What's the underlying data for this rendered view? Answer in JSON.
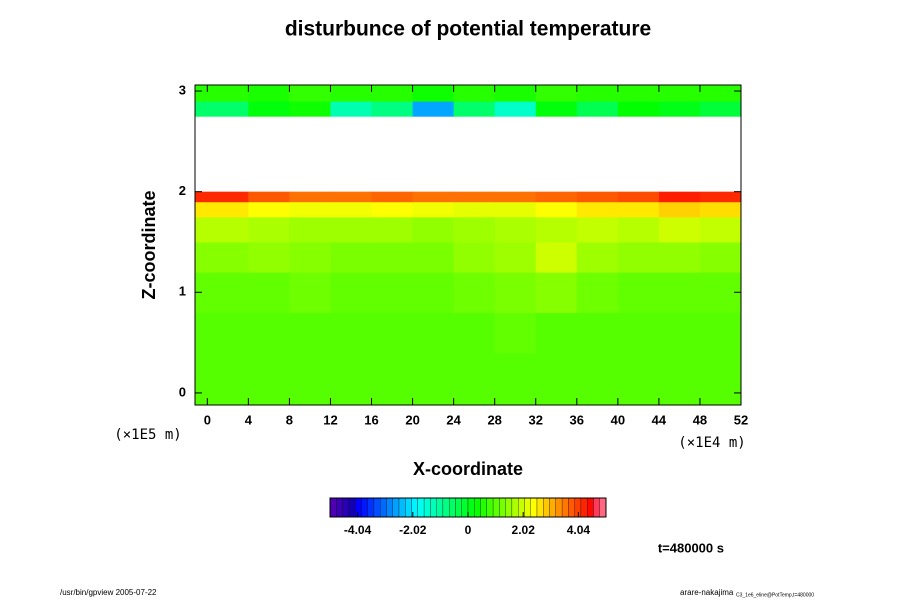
{
  "chart_data": {
    "type": "heatmap",
    "title": "disturbunce of potential temperature",
    "x_label": "X-coordinate",
    "y_label": "Z-coordinate",
    "x_unit": "(×1E4 m)",
    "y_unit": "(×1E5 m)",
    "xlim": [
      -1.2,
      52
    ],
    "ylim": [
      -0.12,
      3.06
    ],
    "xticks": [
      0,
      4,
      8,
      12,
      16,
      20,
      24,
      28,
      32,
      36,
      40,
      44,
      48,
      52
    ],
    "yticks": [
      0,
      1,
      2,
      3
    ],
    "x_bins": [
      -1.2,
      4,
      8,
      12,
      16,
      20,
      24,
      28,
      32,
      36,
      40,
      44,
      48,
      52
    ],
    "y_bins": [
      -0.12,
      0.4,
      0.8,
      1.2,
      1.5,
      1.75,
      1.9,
      2.0,
      2.75,
      2.9,
      3.06
    ],
    "values": [
      [
        1.0,
        1.0,
        1.0,
        1.0,
        1.0,
        1.0,
        1.0,
        1.0,
        1.0,
        1.0,
        1.0,
        1.0,
        1.0
      ],
      [
        1.0,
        1.0,
        1.0,
        1.0,
        1.0,
        1.0,
        1.0,
        1.1,
        1.0,
        1.0,
        1.0,
        1.0,
        1.0
      ],
      [
        1.1,
        1.1,
        1.2,
        1.1,
        1.1,
        1.1,
        1.2,
        1.3,
        1.4,
        1.2,
        1.1,
        1.1,
        1.1
      ],
      [
        1.4,
        1.5,
        1.4,
        1.3,
        1.3,
        1.3,
        1.5,
        1.6,
        2.0,
        1.6,
        1.5,
        1.5,
        1.4
      ],
      [
        1.8,
        1.7,
        1.6,
        1.6,
        1.6,
        1.5,
        1.6,
        1.7,
        1.8,
        1.9,
        1.8,
        2.0,
        1.9
      ],
      [
        2.6,
        2.4,
        2.3,
        2.3,
        2.4,
        2.3,
        2.2,
        2.2,
        2.4,
        2.6,
        2.6,
        2.8,
        2.7
      ],
      [
        4.2,
        3.8,
        3.6,
        3.6,
        3.7,
        3.6,
        3.6,
        3.6,
        3.7,
        3.8,
        3.9,
        4.3,
        4.2
      ],
      [
        null,
        null,
        null,
        null,
        null,
        null,
        null,
        null,
        null,
        null,
        null,
        null,
        null
      ],
      [
        -0.6,
        0.2,
        0.4,
        -1.2,
        -0.8,
        -2.6,
        -0.6,
        -1.4,
        0.2,
        -0.4,
        0.3,
        0.1,
        -0.2
      ],
      [
        0.6,
        0.5,
        0.7,
        0.6,
        0.6,
        0.4,
        0.6,
        0.5,
        0.7,
        0.6,
        0.6,
        0.6,
        0.6
      ]
    ],
    "clim": [
      -5.05,
      5.05
    ],
    "cticks": [
      -4.04,
      -2.02,
      0,
      2.02,
      4.04
    ],
    "time_label": "t=480000 s",
    "footer_left": "/usr/bin/gpview 2005-07-22",
    "footer_right": "arare-nakajima",
    "footer_right_small": "C3_1e6_eline@PotTemp,t=480000"
  }
}
